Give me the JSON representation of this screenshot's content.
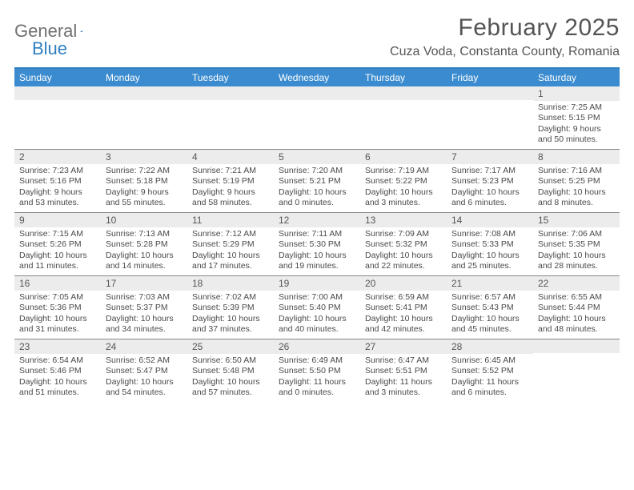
{
  "logo": {
    "text1": "General",
    "text2": "Blue"
  },
  "header": {
    "month_title": "February 2025",
    "location": "Cuza Voda, Constanta County, Romania"
  },
  "colors": {
    "header_bar": "#3a8bcf",
    "header_border": "#2f7fc2",
    "daynum_bg": "#ececec",
    "week_border": "#888888",
    "text": "#404040"
  },
  "weekdays": [
    "Sunday",
    "Monday",
    "Tuesday",
    "Wednesday",
    "Thursday",
    "Friday",
    "Saturday"
  ],
  "weeks": [
    [
      {
        "n": "",
        "sr": "",
        "ss": "",
        "dl1": "",
        "dl2": ""
      },
      {
        "n": "",
        "sr": "",
        "ss": "",
        "dl1": "",
        "dl2": ""
      },
      {
        "n": "",
        "sr": "",
        "ss": "",
        "dl1": "",
        "dl2": ""
      },
      {
        "n": "",
        "sr": "",
        "ss": "",
        "dl1": "",
        "dl2": ""
      },
      {
        "n": "",
        "sr": "",
        "ss": "",
        "dl1": "",
        "dl2": ""
      },
      {
        "n": "",
        "sr": "",
        "ss": "",
        "dl1": "",
        "dl2": ""
      },
      {
        "n": "1",
        "sr": "Sunrise: 7:25 AM",
        "ss": "Sunset: 5:15 PM",
        "dl1": "Daylight: 9 hours",
        "dl2": "and 50 minutes."
      }
    ],
    [
      {
        "n": "2",
        "sr": "Sunrise: 7:23 AM",
        "ss": "Sunset: 5:16 PM",
        "dl1": "Daylight: 9 hours",
        "dl2": "and 53 minutes."
      },
      {
        "n": "3",
        "sr": "Sunrise: 7:22 AM",
        "ss": "Sunset: 5:18 PM",
        "dl1": "Daylight: 9 hours",
        "dl2": "and 55 minutes."
      },
      {
        "n": "4",
        "sr": "Sunrise: 7:21 AM",
        "ss": "Sunset: 5:19 PM",
        "dl1": "Daylight: 9 hours",
        "dl2": "and 58 minutes."
      },
      {
        "n": "5",
        "sr": "Sunrise: 7:20 AM",
        "ss": "Sunset: 5:21 PM",
        "dl1": "Daylight: 10 hours",
        "dl2": "and 0 minutes."
      },
      {
        "n": "6",
        "sr": "Sunrise: 7:19 AM",
        "ss": "Sunset: 5:22 PM",
        "dl1": "Daylight: 10 hours",
        "dl2": "and 3 minutes."
      },
      {
        "n": "7",
        "sr": "Sunrise: 7:17 AM",
        "ss": "Sunset: 5:23 PM",
        "dl1": "Daylight: 10 hours",
        "dl2": "and 6 minutes."
      },
      {
        "n": "8",
        "sr": "Sunrise: 7:16 AM",
        "ss": "Sunset: 5:25 PM",
        "dl1": "Daylight: 10 hours",
        "dl2": "and 8 minutes."
      }
    ],
    [
      {
        "n": "9",
        "sr": "Sunrise: 7:15 AM",
        "ss": "Sunset: 5:26 PM",
        "dl1": "Daylight: 10 hours",
        "dl2": "and 11 minutes."
      },
      {
        "n": "10",
        "sr": "Sunrise: 7:13 AM",
        "ss": "Sunset: 5:28 PM",
        "dl1": "Daylight: 10 hours",
        "dl2": "and 14 minutes."
      },
      {
        "n": "11",
        "sr": "Sunrise: 7:12 AM",
        "ss": "Sunset: 5:29 PM",
        "dl1": "Daylight: 10 hours",
        "dl2": "and 17 minutes."
      },
      {
        "n": "12",
        "sr": "Sunrise: 7:11 AM",
        "ss": "Sunset: 5:30 PM",
        "dl1": "Daylight: 10 hours",
        "dl2": "and 19 minutes."
      },
      {
        "n": "13",
        "sr": "Sunrise: 7:09 AM",
        "ss": "Sunset: 5:32 PM",
        "dl1": "Daylight: 10 hours",
        "dl2": "and 22 minutes."
      },
      {
        "n": "14",
        "sr": "Sunrise: 7:08 AM",
        "ss": "Sunset: 5:33 PM",
        "dl1": "Daylight: 10 hours",
        "dl2": "and 25 minutes."
      },
      {
        "n": "15",
        "sr": "Sunrise: 7:06 AM",
        "ss": "Sunset: 5:35 PM",
        "dl1": "Daylight: 10 hours",
        "dl2": "and 28 minutes."
      }
    ],
    [
      {
        "n": "16",
        "sr": "Sunrise: 7:05 AM",
        "ss": "Sunset: 5:36 PM",
        "dl1": "Daylight: 10 hours",
        "dl2": "and 31 minutes."
      },
      {
        "n": "17",
        "sr": "Sunrise: 7:03 AM",
        "ss": "Sunset: 5:37 PM",
        "dl1": "Daylight: 10 hours",
        "dl2": "and 34 minutes."
      },
      {
        "n": "18",
        "sr": "Sunrise: 7:02 AM",
        "ss": "Sunset: 5:39 PM",
        "dl1": "Daylight: 10 hours",
        "dl2": "and 37 minutes."
      },
      {
        "n": "19",
        "sr": "Sunrise: 7:00 AM",
        "ss": "Sunset: 5:40 PM",
        "dl1": "Daylight: 10 hours",
        "dl2": "and 40 minutes."
      },
      {
        "n": "20",
        "sr": "Sunrise: 6:59 AM",
        "ss": "Sunset: 5:41 PM",
        "dl1": "Daylight: 10 hours",
        "dl2": "and 42 minutes."
      },
      {
        "n": "21",
        "sr": "Sunrise: 6:57 AM",
        "ss": "Sunset: 5:43 PM",
        "dl1": "Daylight: 10 hours",
        "dl2": "and 45 minutes."
      },
      {
        "n": "22",
        "sr": "Sunrise: 6:55 AM",
        "ss": "Sunset: 5:44 PM",
        "dl1": "Daylight: 10 hours",
        "dl2": "and 48 minutes."
      }
    ],
    [
      {
        "n": "23",
        "sr": "Sunrise: 6:54 AM",
        "ss": "Sunset: 5:46 PM",
        "dl1": "Daylight: 10 hours",
        "dl2": "and 51 minutes."
      },
      {
        "n": "24",
        "sr": "Sunrise: 6:52 AM",
        "ss": "Sunset: 5:47 PM",
        "dl1": "Daylight: 10 hours",
        "dl2": "and 54 minutes."
      },
      {
        "n": "25",
        "sr": "Sunrise: 6:50 AM",
        "ss": "Sunset: 5:48 PM",
        "dl1": "Daylight: 10 hours",
        "dl2": "and 57 minutes."
      },
      {
        "n": "26",
        "sr": "Sunrise: 6:49 AM",
        "ss": "Sunset: 5:50 PM",
        "dl1": "Daylight: 11 hours",
        "dl2": "and 0 minutes."
      },
      {
        "n": "27",
        "sr": "Sunrise: 6:47 AM",
        "ss": "Sunset: 5:51 PM",
        "dl1": "Daylight: 11 hours",
        "dl2": "and 3 minutes."
      },
      {
        "n": "28",
        "sr": "Sunrise: 6:45 AM",
        "ss": "Sunset: 5:52 PM",
        "dl1": "Daylight: 11 hours",
        "dl2": "and 6 minutes."
      },
      {
        "n": "",
        "sr": "",
        "ss": "",
        "dl1": "",
        "dl2": ""
      }
    ]
  ]
}
